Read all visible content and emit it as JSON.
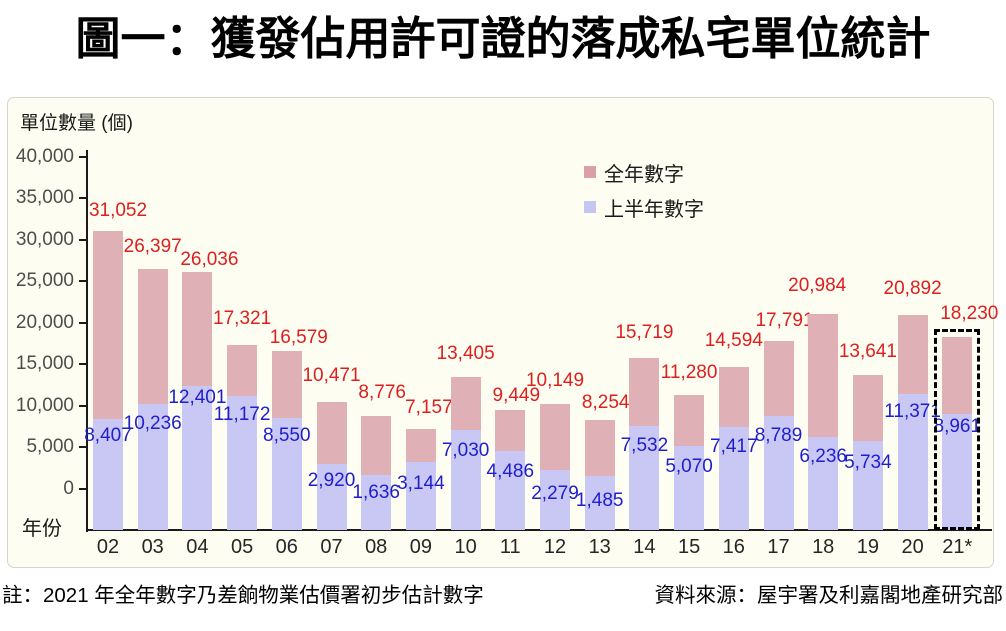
{
  "title": "圖一：獲發佔用許可證的落成私宅單位統計",
  "colors": {
    "full_year_bar": "#dfb0b6",
    "half_year_bar": "#c9c7f3",
    "full_year_label": "#dc2020",
    "half_year_label": "#1e1ecd",
    "axis_line": "#1a1a1a",
    "tick_label": "#4d4d4d",
    "chart_background": "#fdfdf1",
    "frame_border": "#d5d5ca"
  },
  "legend": {
    "items": [
      {
        "label": "全年數字",
        "color": "#d9a0a8"
      },
      {
        "label": "上半年數字",
        "color": "#c6c5ef"
      }
    ]
  },
  "footer": {
    "note": "註：2021 年全年數字乃差餉物業估價署初步估計數字",
    "source": "資料來源：屋宇署及利嘉閣地產研究部"
  },
  "chart_data": {
    "type": "bar",
    "title": "圖一：獲發佔用許可證的落成私宅單位統計",
    "ylabel": "單位數量 (個)",
    "xlabel": "年份",
    "categories": [
      "02",
      "03",
      "04",
      "05",
      "06",
      "07",
      "08",
      "09",
      "10",
      "11",
      "12",
      "13",
      "14",
      "15",
      "16",
      "17",
      "18",
      "19",
      "20",
      "21*"
    ],
    "series": [
      {
        "name": "全年數字",
        "values": [
          31052,
          26397,
          26036,
          17321,
          16579,
          10471,
          8776,
          7157,
          13405,
          9449,
          10149,
          8254,
          15719,
          11280,
          14594,
          17791,
          20984,
          13641,
          20892,
          18230
        ]
      },
      {
        "name": "上半年數字",
        "values": [
          8407,
          10236,
          12401,
          11172,
          8550,
          2920,
          1636,
          3144,
          7030,
          4486,
          2279,
          1485,
          7532,
          5070,
          7417,
          8789,
          6236,
          5734,
          11371,
          8961
        ]
      }
    ],
    "yticks": [
      0,
      5000,
      10000,
      15000,
      20000,
      25000,
      30000,
      35000,
      40000
    ],
    "ylim": [
      -5000,
      40000
    ],
    "grid": false,
    "legend_position": "inside-top-right",
    "annotations": [
      "2021 (21*) bar is outlined with a black dashed rectangle — preliminary estimate"
    ]
  }
}
